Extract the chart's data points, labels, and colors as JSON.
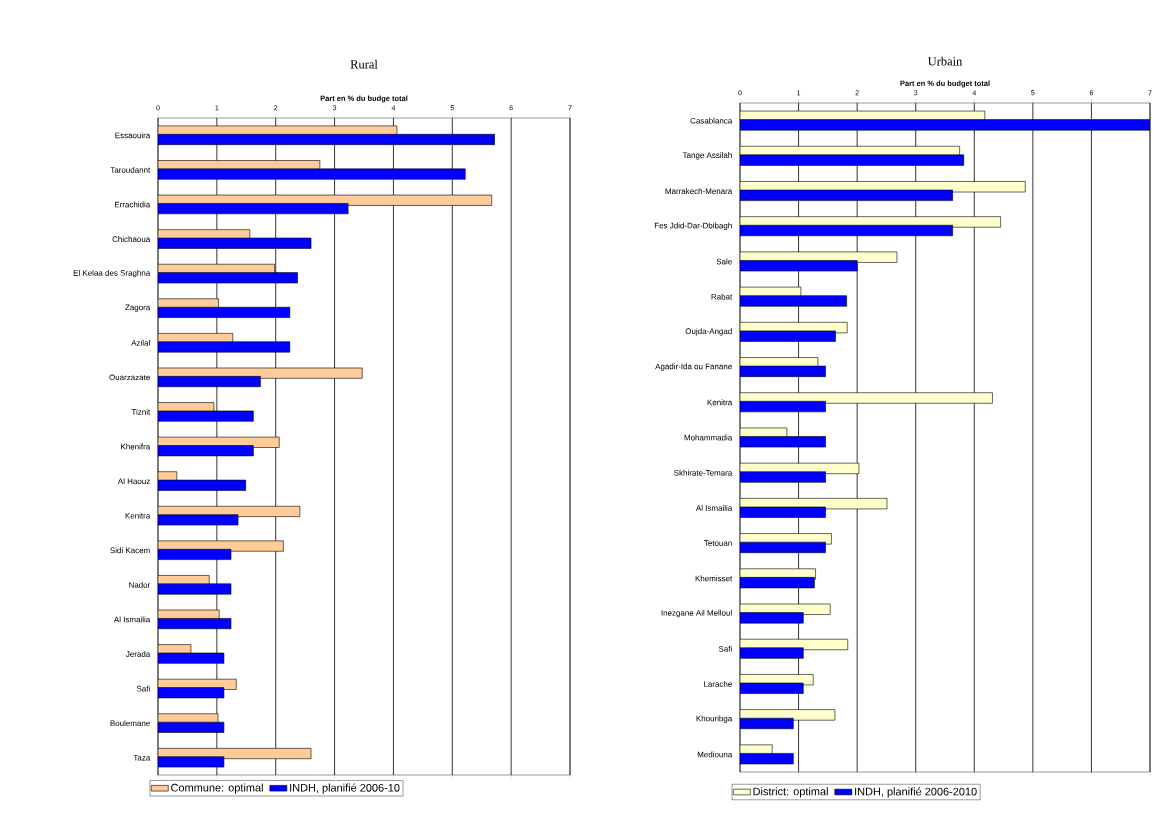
{
  "chart_data": [
    {
      "type": "bar",
      "orientation": "horizontal",
      "title": "Rural",
      "xlabel": "Part en % du budge total",
      "categories": [
        "Essaouira",
        "Taroudannt",
        "Errachidia",
        "Chichaoua",
        "El Kelaa des Sraghna",
        "Zagora",
        "Azilal",
        "Ouarzazate",
        "Tiznit",
        "Khenifra",
        "Al Haouz",
        "Kenitra",
        "Sidi Kacem",
        "Nador",
        "Al Ismailia",
        "Jerada",
        "Safi",
        "Boulemane",
        "Taza"
      ],
      "series": [
        {
          "name": "Commune: optimal",
          "color": "#ffcc99",
          "values": [
            4.06,
            2.75,
            5.67,
            1.56,
            1.98,
            1.03,
            1.27,
            3.47,
            0.95,
            2.06,
            0.32,
            2.41,
            2.13,
            0.87,
            1.04,
            0.56,
            1.33,
            1.02,
            2.6
          ]
        },
        {
          "name": "INDH, planifié 2006-10",
          "color": "#0000ff",
          "values": [
            5.72,
            5.22,
            3.23,
            2.6,
            2.37,
            2.24,
            2.24,
            1.74,
            1.62,
            1.62,
            1.49,
            1.36,
            1.24,
            1.24,
            1.24,
            1.12,
            1.12,
            1.12,
            1.12
          ]
        }
      ],
      "xlim": [
        0,
        7
      ],
      "xticks": [
        0,
        1,
        2,
        3,
        4,
        5,
        6,
        7
      ],
      "grid": "x",
      "legend": "bottom"
    },
    {
      "type": "bar",
      "orientation": "horizontal",
      "title": "Urbain",
      "xlabel": "Part en % du budget total",
      "categories": [
        "Casablanca",
        "Tange Assilah",
        "Marrakech-Menara",
        "Fes Jdid-Dar-Dbibagh",
        "Sale",
        "Rabat",
        "Oujda-Angad",
        "Agadir-Ida ou Fanane",
        "Kenitra",
        "Mohammadia",
        "Skhirate-Temara",
        "Al Ismailia",
        "Tetouan",
        "Khemisset",
        "Inezgane Ail Melloul",
        "Safi",
        "Larache",
        "Khouribga",
        "Mediouna"
      ],
      "series": [
        {
          "name": "District: optimal",
          "color": "#ffffcc",
          "values": [
            4.18,
            3.75,
            4.87,
            4.45,
            2.68,
            1.04,
            1.83,
            1.33,
            4.31,
            0.8,
            2.03,
            2.51,
            1.56,
            1.29,
            1.54,
            1.84,
            1.25,
            1.62,
            0.55
          ]
        },
        {
          "name": "INDH, planifié 2006-2010",
          "color": "#0000ff",
          "values": [
            7.0,
            3.82,
            3.63,
            3.63,
            2.0,
            1.82,
            1.63,
            1.46,
            1.46,
            1.46,
            1.46,
            1.46,
            1.46,
            1.27,
            1.08,
            1.08,
            1.08,
            0.91,
            0.91
          ]
        }
      ],
      "xlim": [
        0,
        7
      ],
      "xticks": [
        0,
        1,
        2,
        3,
        4,
        5,
        6,
        7
      ],
      "grid": "x",
      "legend": "bottom"
    }
  ]
}
